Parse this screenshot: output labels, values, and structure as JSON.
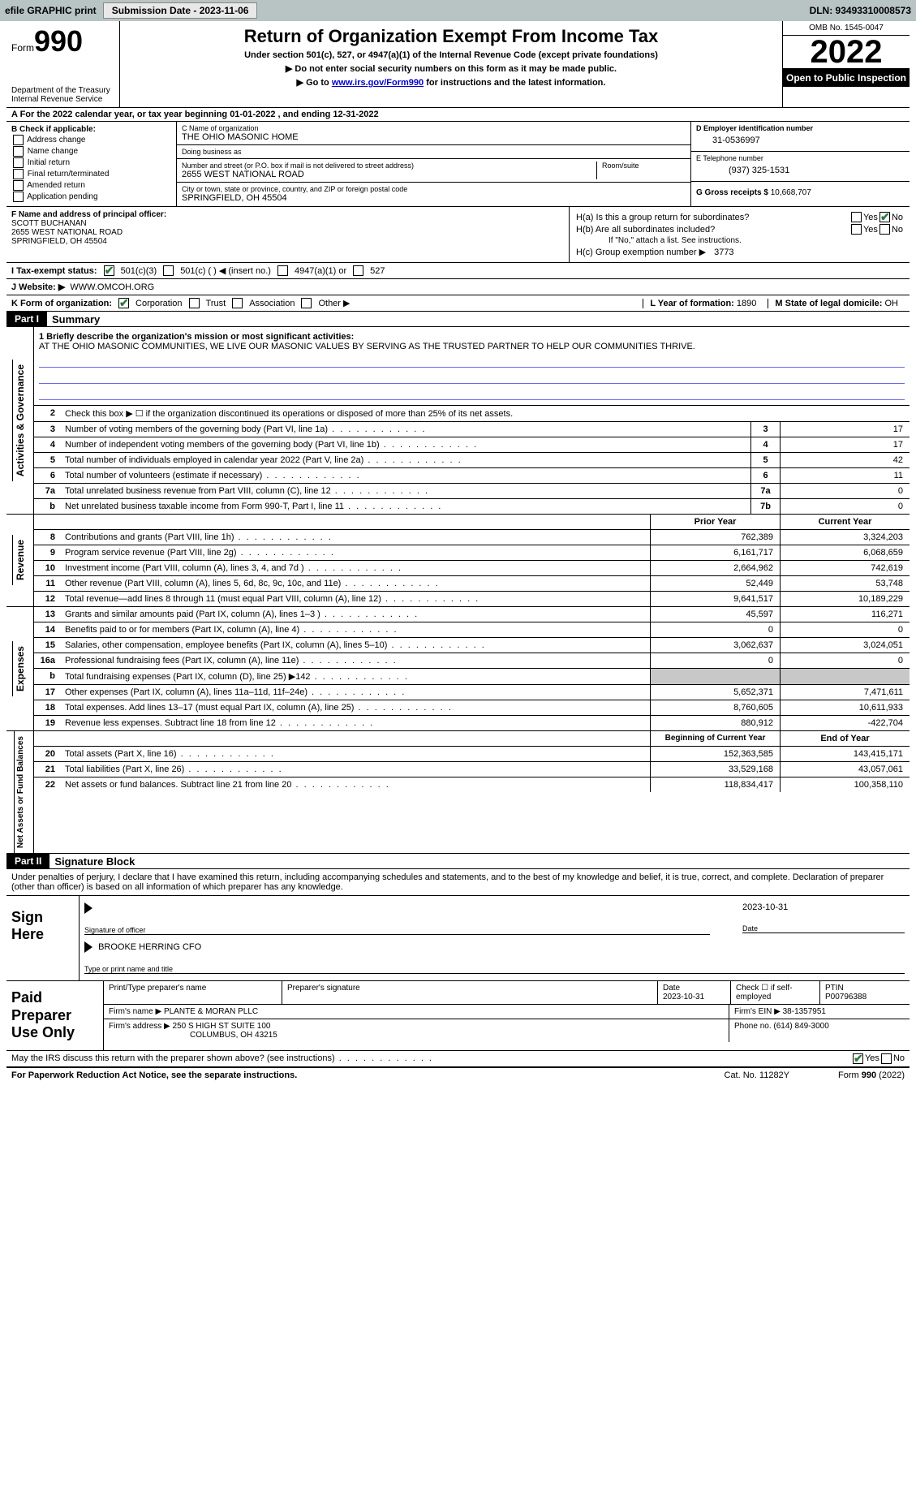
{
  "topbar": {
    "efile": "efile GRAPHIC print",
    "submission_label": "Submission Date - 2023-11-06",
    "dln_label": "DLN: 93493310008573"
  },
  "header": {
    "form_word": "Form",
    "form_num": "990",
    "dept": "Department of the Treasury\nInternal Revenue Service",
    "title": "Return of Organization Exempt From Income Tax",
    "subtitle": "Under section 501(c), 527, or 4947(a)(1) of the Internal Revenue Code (except private foundations)",
    "line1": "▶ Do not enter social security numbers on this form as it may be made public.",
    "line2_pre": "▶ Go to ",
    "line2_link": "www.irs.gov/Form990",
    "line2_post": " for instructions and the latest information.",
    "omb": "OMB No. 1545-0047",
    "year": "2022",
    "inspect": "Open to Public Inspection"
  },
  "rowA": "A For the 2022 calendar year, or tax year beginning 01-01-2022   , and ending 12-31-2022",
  "colB": {
    "hdr": "B Check if applicable:",
    "opts": [
      "Address change",
      "Name change",
      "Initial return",
      "Final return/terminated",
      "Amended return",
      "Application pending"
    ]
  },
  "colC": {
    "name_label": "C Name of organization",
    "name": "THE OHIO MASONIC HOME",
    "dba_label": "Doing business as",
    "dba": "",
    "addr_label": "Number and street (or P.O. box if mail is not delivered to street address)",
    "room_label": "Room/suite",
    "addr": "2655 WEST NATIONAL ROAD",
    "city_label": "City or town, state or province, country, and ZIP or foreign postal code",
    "city": "SPRINGFIELD, OH  45504"
  },
  "colD": {
    "d_label": "D Employer identification number",
    "ein": "31-0536997",
    "e_label": "E Telephone number",
    "phone": "(937) 325-1531",
    "g_label": "G Gross receipts $",
    "gross": "10,668,707"
  },
  "colF": {
    "label": "F Name and address of principal officer:",
    "name": "SCOTT BUCHANAN",
    "addr1": "2655 WEST NATIONAL ROAD",
    "addr2": "SPRINGFIELD, OH  45504"
  },
  "colH": {
    "ha": "H(a)  Is this a group return for subordinates?",
    "hb": "H(b)  Are all subordinates included?",
    "hb_note": "If \"No,\" attach a list. See instructions.",
    "hc": "H(c)  Group exemption number ▶",
    "hc_val": "3773",
    "yes": "Yes",
    "no": "No"
  },
  "rowI": {
    "label": "I   Tax-exempt status:",
    "o1": "501(c)(3)",
    "o2": "501(c) (  ) ◀ (insert no.)",
    "o3": "4947(a)(1) or",
    "o4": "527"
  },
  "rowJ": {
    "label": "J   Website: ▶",
    "val": "WWW.OMCOH.ORG"
  },
  "rowK": {
    "label": "K Form of organization:",
    "o1": "Corporation",
    "o2": "Trust",
    "o3": "Association",
    "o4": "Other ▶",
    "l_label": "L Year of formation:",
    "l_val": "1890",
    "m_label": "M State of legal domicile:",
    "m_val": "OH"
  },
  "part1": {
    "hdr": "Part I",
    "title": "Summary",
    "q1_label": "1  Briefly describe the organization's mission or most significant activities:",
    "q1_text": "AT THE OHIO MASONIC COMMUNITIES, WE LIVE OUR MASONIC VALUES BY SERVING AS THE TRUSTED PARTNER TO HELP OUR COMMUNITIES THRIVE.",
    "q2": "Check this box ▶ ☐ if the organization discontinued its operations or disposed of more than 25% of its net assets.",
    "side_ag": "Activities & Governance",
    "side_rev": "Revenue",
    "side_exp": "Expenses",
    "side_net": "Net Assets or Fund Balances",
    "rows_ag": [
      {
        "n": "3",
        "d": "Number of voting members of the governing body (Part VI, line 1a)",
        "b": "3",
        "v": "17"
      },
      {
        "n": "4",
        "d": "Number of independent voting members of the governing body (Part VI, line 1b)",
        "b": "4",
        "v": "17"
      },
      {
        "n": "5",
        "d": "Total number of individuals employed in calendar year 2022 (Part V, line 2a)",
        "b": "5",
        "v": "42"
      },
      {
        "n": "6",
        "d": "Total number of volunteers (estimate if necessary)",
        "b": "6",
        "v": "11"
      },
      {
        "n": "7a",
        "d": "Total unrelated business revenue from Part VIII, column (C), line 12",
        "b": "7a",
        "v": "0"
      },
      {
        "n": "b",
        "d": "Net unrelated business taxable income from Form 990-T, Part I, line 11",
        "b": "7b",
        "v": "0"
      }
    ],
    "hdr_prior": "Prior Year",
    "hdr_curr": "Current Year",
    "rows_rev": [
      {
        "n": "8",
        "d": "Contributions and grants (Part VIII, line 1h)",
        "p": "762,389",
        "c": "3,324,203"
      },
      {
        "n": "9",
        "d": "Program service revenue (Part VIII, line 2g)",
        "p": "6,161,717",
        "c": "6,068,659"
      },
      {
        "n": "10",
        "d": "Investment income (Part VIII, column (A), lines 3, 4, and 7d )",
        "p": "2,664,962",
        "c": "742,619"
      },
      {
        "n": "11",
        "d": "Other revenue (Part VIII, column (A), lines 5, 6d, 8c, 9c, 10c, and 11e)",
        "p": "52,449",
        "c": "53,748"
      },
      {
        "n": "12",
        "d": "Total revenue—add lines 8 through 11 (must equal Part VIII, column (A), line 12)",
        "p": "9,641,517",
        "c": "10,189,229"
      }
    ],
    "rows_exp": [
      {
        "n": "13",
        "d": "Grants and similar amounts paid (Part IX, column (A), lines 1–3 )",
        "p": "45,597",
        "c": "116,271"
      },
      {
        "n": "14",
        "d": "Benefits paid to or for members (Part IX, column (A), line 4)",
        "p": "0",
        "c": "0"
      },
      {
        "n": "15",
        "d": "Salaries, other compensation, employee benefits (Part IX, column (A), lines 5–10)",
        "p": "3,062,637",
        "c": "3,024,051"
      },
      {
        "n": "16a",
        "d": "Professional fundraising fees (Part IX, column (A), line 11e)",
        "p": "0",
        "c": "0"
      },
      {
        "n": "b",
        "d": "Total fundraising expenses (Part IX, column (D), line 25) ▶142",
        "p": "",
        "c": "",
        "grey": true
      },
      {
        "n": "17",
        "d": "Other expenses (Part IX, column (A), lines 11a–11d, 11f–24e)",
        "p": "5,652,371",
        "c": "7,471,611"
      },
      {
        "n": "18",
        "d": "Total expenses. Add lines 13–17 (must equal Part IX, column (A), line 25)",
        "p": "8,760,605",
        "c": "10,611,933"
      },
      {
        "n": "19",
        "d": "Revenue less expenses. Subtract line 18 from line 12",
        "p": "880,912",
        "c": "-422,704"
      }
    ],
    "hdr_beg": "Beginning of Current Year",
    "hdr_end": "End of Year",
    "rows_net": [
      {
        "n": "20",
        "d": "Total assets (Part X, line 16)",
        "p": "152,363,585",
        "c": "143,415,171"
      },
      {
        "n": "21",
        "d": "Total liabilities (Part X, line 26)",
        "p": "33,529,168",
        "c": "43,057,061"
      },
      {
        "n": "22",
        "d": "Net assets or fund balances. Subtract line 21 from line 20",
        "p": "118,834,417",
        "c": "100,358,110"
      }
    ]
  },
  "part2": {
    "hdr": "Part II",
    "title": "Signature Block",
    "decl": "Under penalties of perjury, I declare that I have examined this return, including accompanying schedules and statements, and to the best of my knowledge and belief, it is true, correct, and complete. Declaration of preparer (other than officer) is based on all information of which preparer has any knowledge.",
    "sign_here": "Sign Here",
    "sig_officer": "Signature of officer",
    "sig_date": "2023-10-31",
    "date_lbl": "Date",
    "officer_name": "BROOKE HERRING CFO",
    "type_name": "Type or print name and title",
    "paid_prep": "Paid Preparer Use Only",
    "pp_name_lbl": "Print/Type preparer's name",
    "pp_sig_lbl": "Preparer's signature",
    "pp_date_lbl": "Date",
    "pp_date": "2023-10-31",
    "pp_check_lbl": "Check ☐ if self-employed",
    "ptin_lbl": "PTIN",
    "ptin": "P00796388",
    "firm_name_lbl": "Firm's name    ▶",
    "firm_name": "PLANTE & MORAN PLLC",
    "firm_ein_lbl": "Firm's EIN ▶",
    "firm_ein": "38-1357951",
    "firm_addr_lbl": "Firm's address ▶",
    "firm_addr1": "250 S HIGH ST SUITE 100",
    "firm_addr2": "COLUMBUS, OH  43215",
    "phone_lbl": "Phone no.",
    "phone": "(614) 849-3000"
  },
  "footer": {
    "discuss": "May the IRS discuss this return with the preparer shown above? (see instructions)",
    "yes": "Yes",
    "no": "No",
    "paperwork": "For Paperwork Reduction Act Notice, see the separate instructions.",
    "cat": "Cat. No. 11282Y",
    "form": "Form 990 (2022)"
  }
}
